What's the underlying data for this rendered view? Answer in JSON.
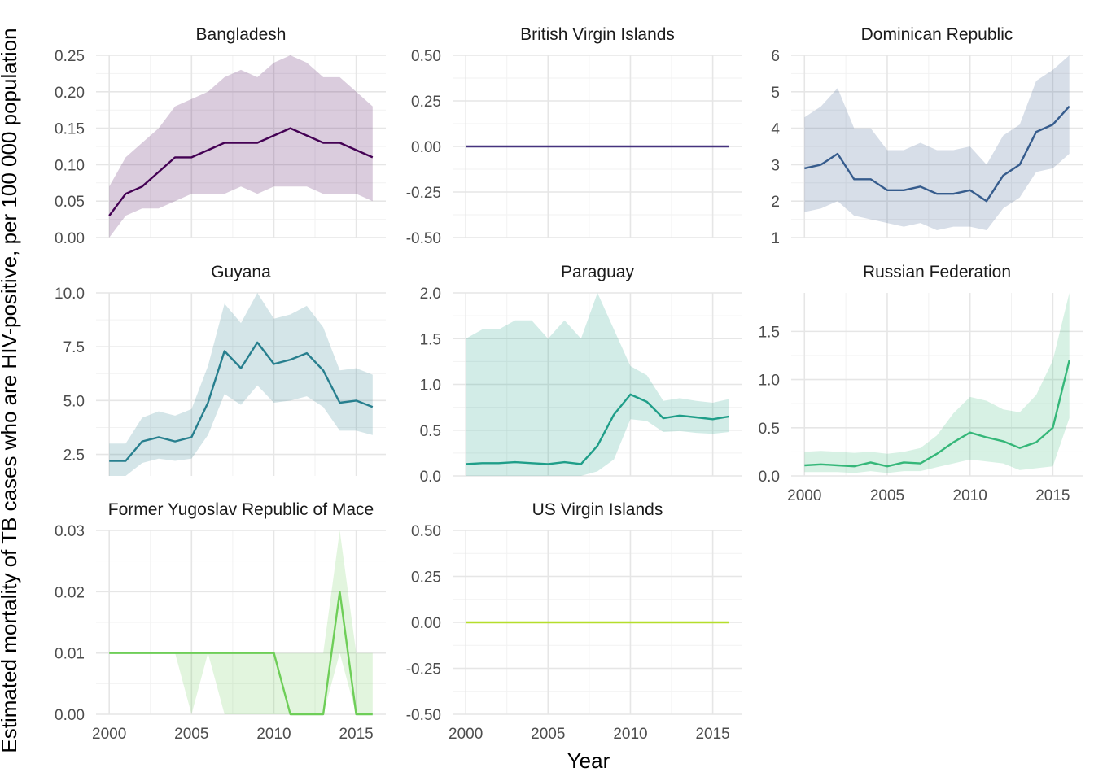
{
  "chart_data": {
    "type": "line",
    "xlabel": "Year",
    "ylabel": "Estimated mortality of TB cases who are HIV-positive, per 100 000 population",
    "x": [
      2000,
      2001,
      2002,
      2003,
      2004,
      2005,
      2006,
      2007,
      2008,
      2009,
      2010,
      2011,
      2012,
      2013,
      2014,
      2015,
      2016
    ],
    "x_ticks": [
      2000,
      2005,
      2010,
      2015
    ],
    "panels": [
      {
        "name": "Bangladesh",
        "color": "#440154",
        "ylim": [
          0,
          0.25
        ],
        "y_ticks": [
          0,
          0.05,
          0.1,
          0.15,
          0.2,
          0.25
        ],
        "y_tick_labels": [
          "0.00",
          "0.05",
          "0.10",
          "0.15",
          "0.20",
          "0.25"
        ],
        "values": [
          0.03,
          0.06,
          0.07,
          0.09,
          0.11,
          0.11,
          0.12,
          0.13,
          0.13,
          0.13,
          0.14,
          0.15,
          0.14,
          0.13,
          0.13,
          0.12,
          0.11
        ],
        "lower": [
          0.0,
          0.03,
          0.04,
          0.04,
          0.05,
          0.06,
          0.06,
          0.06,
          0.07,
          0.06,
          0.07,
          0.07,
          0.07,
          0.06,
          0.06,
          0.06,
          0.05
        ],
        "upper": [
          0.07,
          0.11,
          0.13,
          0.15,
          0.18,
          0.19,
          0.2,
          0.22,
          0.23,
          0.22,
          0.24,
          0.25,
          0.24,
          0.22,
          0.22,
          0.2,
          0.18
        ]
      },
      {
        "name": "British Virgin Islands",
        "color": "#46337e",
        "ylim": [
          -0.5,
          0.5
        ],
        "y_ticks": [
          -0.5,
          -0.25,
          0,
          0.25,
          0.5
        ],
        "y_tick_labels": [
          "-0.50",
          "-0.25",
          "0.00",
          "0.25",
          "0.50"
        ],
        "values": [
          0,
          0,
          0,
          0,
          0,
          0,
          0,
          0,
          0,
          0,
          0,
          0,
          0,
          0,
          0,
          0,
          0
        ],
        "lower": [
          0,
          0,
          0,
          0,
          0,
          0,
          0,
          0,
          0,
          0,
          0,
          0,
          0,
          0,
          0,
          0,
          0
        ],
        "upper": [
          0,
          0,
          0,
          0,
          0,
          0,
          0,
          0,
          0,
          0,
          0,
          0,
          0,
          0,
          0,
          0,
          0
        ]
      },
      {
        "name": "Dominican Republic",
        "color": "#365c8d",
        "ylim": [
          1,
          6
        ],
        "y_ticks": [
          1,
          2,
          3,
          4,
          5,
          6
        ],
        "y_tick_labels": [
          "1",
          "2",
          "3",
          "4",
          "5",
          "6"
        ],
        "values": [
          2.9,
          3.0,
          3.3,
          2.6,
          2.6,
          2.3,
          2.3,
          2.4,
          2.2,
          2.2,
          2.3,
          2.0,
          2.7,
          3.0,
          3.9,
          4.1,
          4.6
        ],
        "lower": [
          1.7,
          1.8,
          2.0,
          1.6,
          1.5,
          1.4,
          1.3,
          1.4,
          1.2,
          1.3,
          1.3,
          1.2,
          1.8,
          2.1,
          2.8,
          2.9,
          3.3
        ],
        "upper": [
          4.3,
          4.6,
          5.1,
          4.0,
          4.0,
          3.4,
          3.4,
          3.6,
          3.4,
          3.4,
          3.5,
          3.0,
          3.8,
          4.1,
          5.3,
          5.6,
          6.0
        ]
      },
      {
        "name": "Guyana",
        "color": "#277f8e",
        "ylim": [
          1.5,
          10
        ],
        "y_ticks": [
          2.5,
          5.0,
          7.5,
          10.0
        ],
        "y_tick_labels": [
          "2.5",
          "5.0",
          "7.5",
          "10.0"
        ],
        "values": [
          2.2,
          2.2,
          3.1,
          3.3,
          3.1,
          3.3,
          4.9,
          7.3,
          6.5,
          7.7,
          6.7,
          6.9,
          7.2,
          6.4,
          4.9,
          5.0,
          4.7
        ],
        "lower": [
          1.5,
          1.5,
          2.1,
          2.3,
          2.2,
          2.3,
          3.4,
          5.3,
          4.8,
          5.7,
          4.9,
          5.0,
          5.2,
          4.7,
          3.6,
          3.6,
          3.4
        ],
        "upper": [
          3.0,
          3.0,
          4.2,
          4.5,
          4.3,
          4.6,
          6.6,
          9.5,
          8.6,
          10.0,
          8.8,
          9.0,
          9.4,
          8.4,
          6.4,
          6.5,
          6.2
        ]
      },
      {
        "name": "Paraguay",
        "color": "#1f9e89",
        "ylim": [
          0,
          2
        ],
        "y_ticks": [
          0,
          0.5,
          1.0,
          1.5,
          2.0
        ],
        "y_tick_labels": [
          "0.0",
          "0.5",
          "1.0",
          "1.5",
          "2.0"
        ],
        "values": [
          0.13,
          0.14,
          0.14,
          0.15,
          0.14,
          0.13,
          0.15,
          0.13,
          0.33,
          0.67,
          0.89,
          0.81,
          0.63,
          0.66,
          0.64,
          0.62,
          0.65
        ],
        "lower": [
          0,
          0,
          0,
          0,
          0,
          0,
          0,
          0,
          0.05,
          0.18,
          0.62,
          0.6,
          0.48,
          0.49,
          0.47,
          0.46,
          0.48
        ],
        "upper": [
          1.5,
          1.6,
          1.6,
          1.7,
          1.7,
          1.5,
          1.7,
          1.5,
          2.0,
          1.6,
          1.2,
          1.1,
          0.82,
          0.85,
          0.82,
          0.8,
          0.84
        ]
      },
      {
        "name": "Russian Federation",
        "color": "#35b779",
        "ylim": [
          0,
          1.9
        ],
        "y_ticks": [
          0,
          0.5,
          1.0,
          1.5
        ],
        "y_tick_labels": [
          "0.0",
          "0.5",
          "1.0",
          "1.5"
        ],
        "values": [
          0.11,
          0.12,
          0.11,
          0.1,
          0.14,
          0.1,
          0.14,
          0.13,
          0.23,
          0.35,
          0.45,
          0.4,
          0.36,
          0.29,
          0.35,
          0.5,
          1.2
        ],
        "lower": [
          0.04,
          0.04,
          0.04,
          0.03,
          0.05,
          0.03,
          0.05,
          0.05,
          0.09,
          0.13,
          0.17,
          0.15,
          0.13,
          0.06,
          0.08,
          0.1,
          0.6
        ],
        "upper": [
          0.25,
          0.26,
          0.25,
          0.24,
          0.25,
          0.23,
          0.25,
          0.29,
          0.42,
          0.65,
          0.82,
          0.78,
          0.69,
          0.66,
          0.84,
          1.2,
          1.9
        ]
      },
      {
        "name": "Former Yugoslav Republic of Mace",
        "color": "#6ece58",
        "ylim": [
          0,
          0.03
        ],
        "y_ticks": [
          0,
          0.01,
          0.02,
          0.03
        ],
        "y_tick_labels": [
          "0.00",
          "0.01",
          "0.02",
          "0.03"
        ],
        "values": [
          0.01,
          0.01,
          0.01,
          0.01,
          0.01,
          0.01,
          0.01,
          0.01,
          0.01,
          0.01,
          0.01,
          0,
          0,
          0,
          0.02,
          0,
          0
        ],
        "lower": [
          0.01,
          0.01,
          0.01,
          0.01,
          0.01,
          0,
          0.01,
          0,
          0,
          0,
          0,
          0,
          0,
          0,
          0.01,
          0,
          0
        ],
        "upper": [
          0.01,
          0.01,
          0.01,
          0.01,
          0.01,
          0.01,
          0.01,
          0.01,
          0.01,
          0.01,
          0.01,
          0.01,
          0.01,
          0.01,
          0.03,
          0.01,
          0.01
        ]
      },
      {
        "name": "US Virgin Islands",
        "color": "#b5de2b",
        "ylim": [
          -0.5,
          0.5
        ],
        "y_ticks": [
          -0.5,
          -0.25,
          0,
          0.25,
          0.5
        ],
        "y_tick_labels": [
          "-0.50",
          "-0.25",
          "0.00",
          "0.25",
          "0.50"
        ],
        "values": [
          0,
          0,
          0,
          0,
          0,
          0,
          0,
          0,
          0,
          0,
          0,
          0,
          0,
          0,
          0,
          0,
          0
        ],
        "lower": [
          0,
          0,
          0,
          0,
          0,
          0,
          0,
          0,
          0,
          0,
          0,
          0,
          0,
          0,
          0,
          0,
          0
        ],
        "upper": [
          0,
          0,
          0,
          0,
          0,
          0,
          0,
          0,
          0,
          0,
          0,
          0,
          0,
          0,
          0,
          0,
          0
        ]
      }
    ]
  }
}
